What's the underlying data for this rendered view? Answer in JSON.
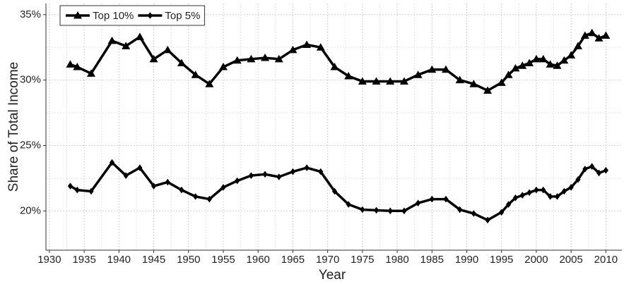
{
  "chart_data": {
    "type": "line",
    "x_label": "Year",
    "y_label": "Share of Total Income",
    "x": [
      1933,
      1934,
      1936,
      1939,
      1941,
      1943,
      1945,
      1947,
      1949,
      1951,
      1953,
      1955,
      1957,
      1959,
      1961,
      1963,
      1965,
      1967,
      1969,
      1971,
      1973,
      1975,
      1977,
      1979,
      1981,
      1983,
      1985,
      1987,
      1989,
      1991,
      1993,
      1995,
      1996,
      1997,
      1998,
      1999,
      2000,
      2001,
      2002,
      2003,
      2004,
      2005,
      2006,
      2007,
      2008,
      2009,
      2010
    ],
    "series": [
      {
        "name": "Top 10%",
        "color": "#000000",
        "marker": "triangle",
        "values": [
          31.2,
          31.0,
          30.5,
          33.0,
          32.6,
          33.3,
          31.6,
          32.3,
          31.3,
          30.4,
          29.7,
          31.0,
          31.5,
          31.6,
          31.7,
          31.6,
          32.3,
          32.7,
          32.5,
          31.0,
          30.3,
          29.9,
          29.9,
          29.9,
          29.9,
          30.4,
          30.8,
          30.8,
          30.0,
          29.7,
          29.2,
          29.8,
          30.4,
          30.9,
          31.1,
          31.3,
          31.6,
          31.6,
          31.2,
          31.1,
          31.5,
          31.9,
          32.6,
          33.4,
          33.6,
          33.2,
          33.4
        ]
      },
      {
        "name": "Top 5%",
        "color": "#000000",
        "marker": "diamond",
        "values": [
          21.9,
          21.6,
          21.5,
          23.7,
          22.7,
          23.3,
          21.9,
          22.2,
          21.6,
          21.1,
          20.9,
          21.8,
          22.3,
          22.7,
          22.8,
          22.6,
          23.0,
          23.3,
          23.0,
          21.5,
          20.5,
          20.1,
          20.05,
          20.0,
          20.0,
          20.6,
          20.9,
          20.9,
          20.1,
          19.8,
          19.3,
          19.9,
          20.5,
          21.0,
          21.2,
          21.4,
          21.6,
          21.6,
          21.1,
          21.1,
          21.5,
          21.8,
          22.4,
          23.2,
          23.4,
          22.9,
          23.1
        ]
      }
    ],
    "xlim": [
      1929.5,
      2012.3
    ],
    "ylim": [
      17.0,
      35.85
    ],
    "xticks": [
      1930,
      1935,
      1940,
      1945,
      1950,
      1955,
      1960,
      1965,
      1970,
      1975,
      1980,
      1985,
      1990,
      1995,
      2000,
      2005,
      2010
    ],
    "yticks": [
      {
        "value": 20,
        "label": "20%"
      },
      {
        "value": 25,
        "label": "25%"
      },
      {
        "value": 30,
        "label": "30%"
      },
      {
        "value": 35,
        "label": "35%"
      }
    ],
    "grid": true,
    "legend": "top-left"
  }
}
